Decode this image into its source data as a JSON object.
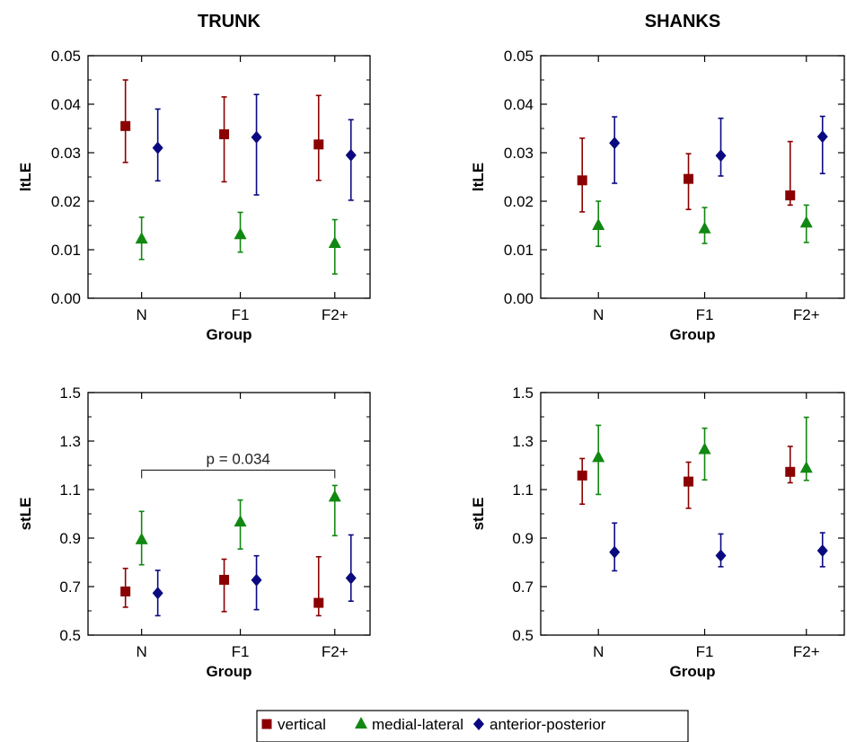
{
  "column_titles": [
    "TRUNK",
    "SHANKS"
  ],
  "legend": [
    {
      "label": "vertical",
      "color": "#8b0000",
      "marker": "square"
    },
    {
      "label": "medial-lateral",
      "color": "#118811",
      "marker": "triangle"
    },
    {
      "label": "anterior-posterior",
      "color": "#0a0a80",
      "marker": "diamond"
    }
  ],
  "chart_data": [
    {
      "type": "scatter",
      "panel": "trunk-ltle",
      "xlabel": "Group",
      "ylabel": "ltLE",
      "categories": [
        "N",
        "F1",
        "F2+"
      ],
      "ylim": [
        0,
        0.05
      ],
      "yticks": [
        "0.00",
        "0.01",
        "0.02",
        "0.03",
        "0.04",
        "0.05"
      ],
      "series": [
        {
          "values": [
            0.0355,
            0.0338,
            0.0317
          ],
          "err_low": [
            0.028,
            0.024,
            0.0243
          ],
          "err_high": [
            0.045,
            0.0415,
            0.0418
          ]
        },
        {
          "values": [
            0.0122,
            0.0131,
            0.0113
          ],
          "err_low": [
            0.008,
            0.0095,
            0.005
          ],
          "err_high": [
            0.0167,
            0.0177,
            0.0162
          ]
        },
        {
          "values": [
            0.031,
            0.0332,
            0.0295
          ],
          "err_low": [
            0.0242,
            0.0213,
            0.0202
          ],
          "err_high": [
            0.039,
            0.042,
            0.0368
          ]
        }
      ]
    },
    {
      "type": "scatter",
      "panel": "shanks-ltle",
      "xlabel": "Group",
      "ylabel": "ltLE",
      "categories": [
        "N",
        "F1",
        "F2+"
      ],
      "ylim": [
        0,
        0.05
      ],
      "yticks": [
        "0.00",
        "0.01",
        "0.02",
        "0.03",
        "0.04",
        "0.05"
      ],
      "series": [
        {
          "values": [
            0.0243,
            0.0246,
            0.0212
          ],
          "err_low": [
            0.0178,
            0.0183,
            0.0192
          ],
          "err_high": [
            0.033,
            0.0298,
            0.0323
          ]
        },
        {
          "values": [
            0.015,
            0.0143,
            0.0155
          ],
          "err_low": [
            0.0107,
            0.0113,
            0.0115
          ],
          "err_high": [
            0.02,
            0.0187,
            0.0192
          ]
        },
        {
          "values": [
            0.032,
            0.0294,
            0.0333
          ],
          "err_low": [
            0.0237,
            0.0252,
            0.0257
          ],
          "err_high": [
            0.0374,
            0.0371,
            0.0375
          ]
        }
      ]
    },
    {
      "type": "scatter",
      "panel": "trunk-stle",
      "xlabel": "Group",
      "ylabel": "stLE",
      "categories": [
        "N",
        "F1",
        "F2+"
      ],
      "ylim": [
        0.5,
        1.5
      ],
      "yticks": [
        "0.5",
        "0.7",
        "0.9",
        "1.1",
        "1.3",
        "1.5"
      ],
      "series": [
        {
          "values": [
            0.68,
            0.728,
            0.633
          ],
          "err_low": [
            0.615,
            0.597,
            0.58
          ],
          "err_high": [
            0.775,
            0.813,
            0.823
          ]
        },
        {
          "values": [
            0.893,
            0.966,
            1.069
          ],
          "err_low": [
            0.79,
            0.855,
            0.91
          ],
          "err_high": [
            1.01,
            1.057,
            1.117
          ]
        },
        {
          "values": [
            0.673,
            0.727,
            0.735
          ],
          "err_low": [
            0.58,
            0.605,
            0.64
          ],
          "err_high": [
            0.767,
            0.827,
            0.913
          ]
        }
      ],
      "annotation": {
        "text": "p = 0.034",
        "from": "N",
        "to": "F2+",
        "y": 1.18
      }
    },
    {
      "type": "scatter",
      "panel": "shanks-stle",
      "xlabel": "Group",
      "ylabel": "stLE",
      "categories": [
        "N",
        "F1",
        "F2+"
      ],
      "ylim": [
        0.5,
        1.5
      ],
      "yticks": [
        "0.5",
        "0.7",
        "0.9",
        "1.1",
        "1.3",
        "1.5"
      ],
      "series": [
        {
          "values": [
            1.158,
            1.133,
            1.173
          ],
          "err_low": [
            1.04,
            1.023,
            1.128
          ],
          "err_high": [
            1.228,
            1.213,
            1.278
          ]
        },
        {
          "values": [
            1.232,
            1.265,
            1.188
          ],
          "err_low": [
            1.08,
            1.14,
            1.138
          ],
          "err_high": [
            1.365,
            1.353,
            1.398
          ]
        },
        {
          "values": [
            0.842,
            0.828,
            0.848
          ],
          "err_low": [
            0.765,
            0.782,
            0.782
          ],
          "err_high": [
            0.962,
            0.917,
            0.922
          ]
        }
      ]
    }
  ]
}
